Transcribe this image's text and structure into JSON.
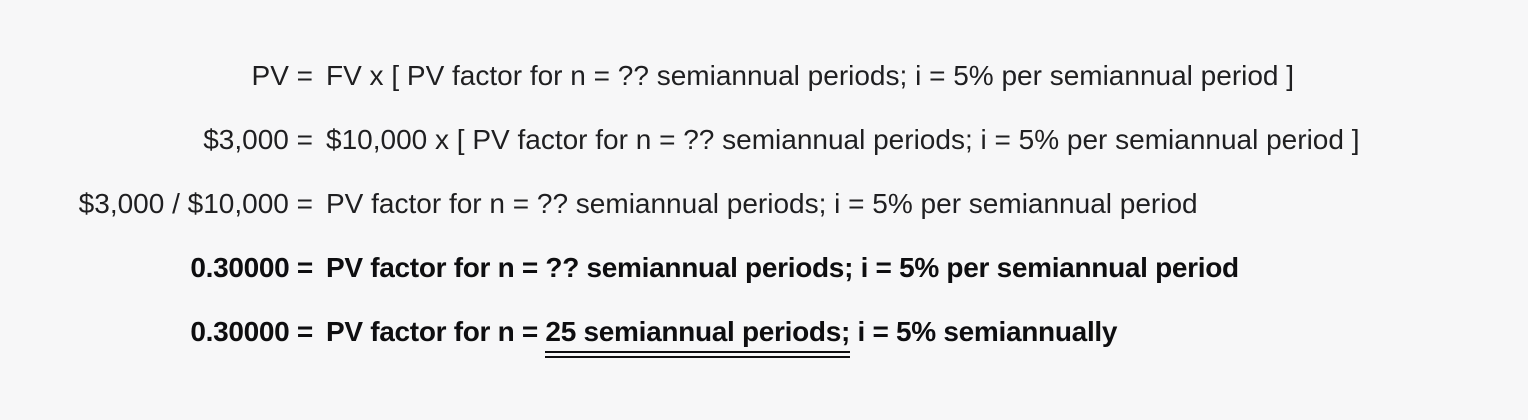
{
  "page": {
    "background_color": "#f7f7f8",
    "text_color": "#1f1f21",
    "bold_text_color": "#0e0e10",
    "underline_color": "#0e0e10"
  },
  "equations": {
    "rows": [
      {
        "lhs": "PV =",
        "rhs": "FV x [ PV factor for n = ?? semiannual periods; i = 5% per semiannual period ]",
        "bold": false
      },
      {
        "lhs": "$3,000 =",
        "rhs": "$10,000 x [ PV factor for n = ?? semiannual periods; i = 5% per semiannual period ]",
        "bold": false
      },
      {
        "lhs": "$3,000 / $10,000 =",
        "rhs": "PV factor for n = ?? semiannual periods; i = 5% per semiannual period",
        "bold": false
      },
      {
        "lhs": "0.30000 =",
        "rhs": "PV factor for n = ?? semiannual periods; i = 5% per semiannual period",
        "bold": true
      },
      {
        "lhs": "0.30000 =",
        "rhs_pre": "PV factor for n = ",
        "rhs_underlined": "25 semiannual periods;",
        "rhs_post": " i = 5% semiannually",
        "bold": true,
        "underline_style": "double"
      }
    ]
  }
}
